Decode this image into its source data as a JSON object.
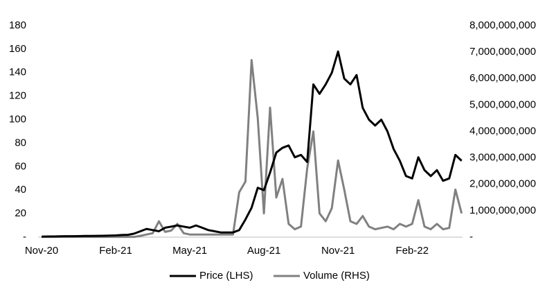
{
  "chart_data": {
    "type": "line",
    "categories": [
      "Nov-20",
      null,
      null,
      null,
      null,
      null,
      null,
      null,
      null,
      null,
      null,
      null,
      "Feb-21",
      null,
      null,
      null,
      null,
      null,
      null,
      null,
      null,
      null,
      null,
      null,
      "May-21",
      null,
      null,
      null,
      null,
      null,
      null,
      null,
      null,
      null,
      null,
      null,
      "Aug-21",
      null,
      null,
      null,
      null,
      null,
      null,
      null,
      null,
      null,
      null,
      null,
      "Nov-21",
      null,
      null,
      null,
      null,
      null,
      null,
      null,
      null,
      null,
      null,
      null,
      "Feb-22",
      null,
      null,
      null,
      null,
      null,
      null,
      null,
      null
    ],
    "series": [
      {
        "name": "Price (LHS)",
        "color": "#000000",
        "axis": "y",
        "values": [
          0.5,
          0.6,
          0.6,
          0.7,
          0.8,
          0.8,
          0.9,
          1,
          1,
          1.1,
          1.2,
          1.3,
          1.5,
          1.8,
          2,
          3,
          5,
          7,
          6,
          5,
          8,
          9,
          10,
          9,
          8,
          10,
          8,
          6,
          5,
          4,
          4,
          4,
          6,
          15,
          25,
          42,
          40,
          55,
          72,
          76,
          78,
          68,
          70,
          64,
          130,
          122,
          130,
          140,
          158,
          135,
          130,
          138,
          110,
          100,
          95,
          100,
          90,
          75,
          65,
          52,
          50,
          68,
          57,
          52,
          57,
          48,
          50,
          70,
          65
        ]
      },
      {
        "name": "Volume (RHS)",
        "color": "#808080",
        "axis": "y2",
        "values": [
          10000000,
          10000000,
          10000000,
          10000000,
          10000000,
          10000000,
          10000000,
          10000000,
          10000000,
          10000000,
          10000000,
          10000000,
          10000000,
          10000000,
          10000000,
          10000000,
          50000000,
          100000000,
          150000000,
          600000000,
          200000000,
          250000000,
          500000000,
          150000000,
          100000000,
          100000000,
          100000000,
          100000000,
          100000000,
          100000000,
          100000000,
          100000000,
          1700000000,
          2100000000,
          6700000000,
          4500000000,
          900000000,
          4900000000,
          1500000000,
          2200000000,
          500000000,
          300000000,
          400000000,
          2600000000,
          4000000000,
          900000000,
          600000000,
          1100000000,
          2900000000,
          1800000000,
          600000000,
          500000000,
          800000000,
          400000000,
          300000000,
          350000000,
          400000000,
          300000000,
          500000000,
          400000000,
          500000000,
          1400000000,
          400000000,
          300000000,
          500000000,
          300000000,
          350000000,
          1800000000,
          900000000
        ]
      }
    ],
    "ylim": [
      0,
      180
    ],
    "yticks": [
      {
        "value": 0,
        "label": "-"
      },
      20,
      40,
      60,
      80,
      100,
      120,
      140,
      160,
      180
    ],
    "y2lim": [
      0,
      8000000000
    ],
    "y2ticks": [
      {
        "value": 0,
        "label": "-"
      },
      {
        "value": 1000000000,
        "label": "1,000,000,000"
      },
      {
        "value": 2000000000,
        "label": "2,000,000,000"
      },
      {
        "value": 3000000000,
        "label": "3,000,000,000"
      },
      {
        "value": 4000000000,
        "label": "4,000,000,000"
      },
      {
        "value": 5000000000,
        "label": "5,000,000,000"
      },
      {
        "value": 6000000000,
        "label": "6,000,000,000"
      },
      {
        "value": 7000000000,
        "label": "7,000,000,000"
      },
      {
        "value": 8000000000,
        "label": "8,000,000,000"
      }
    ],
    "grid": false,
    "legend": "bottom"
  }
}
